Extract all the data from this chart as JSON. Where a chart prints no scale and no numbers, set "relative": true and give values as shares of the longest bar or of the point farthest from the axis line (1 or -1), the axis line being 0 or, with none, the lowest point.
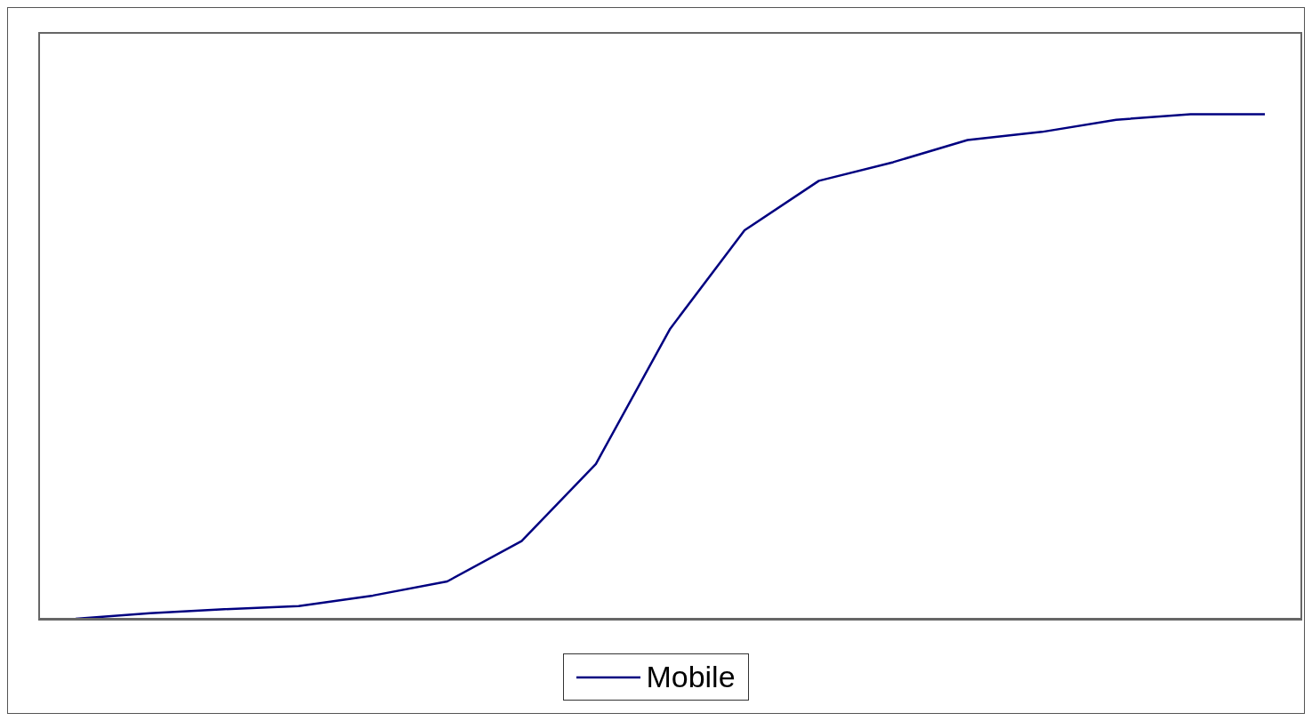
{
  "chart_data": {
    "type": "line",
    "relative": true,
    "categories": [
      null,
      null,
      null,
      null,
      null,
      null,
      null,
      null,
      null,
      null,
      null,
      null,
      null,
      null,
      null,
      null,
      null
    ],
    "series": [
      {
        "name": "Mobile",
        "color": "#000080",
        "values": [
          0,
          0.011,
          0.019,
          0.025,
          0.046,
          0.074,
          0.154,
          0.307,
          0.575,
          0.77,
          0.868,
          0.905,
          0.949,
          0.965,
          0.989,
          1,
          1
        ]
      }
    ],
    "legend": "bottom",
    "marker": "none",
    "line_style": "solid",
    "grid": false
  }
}
